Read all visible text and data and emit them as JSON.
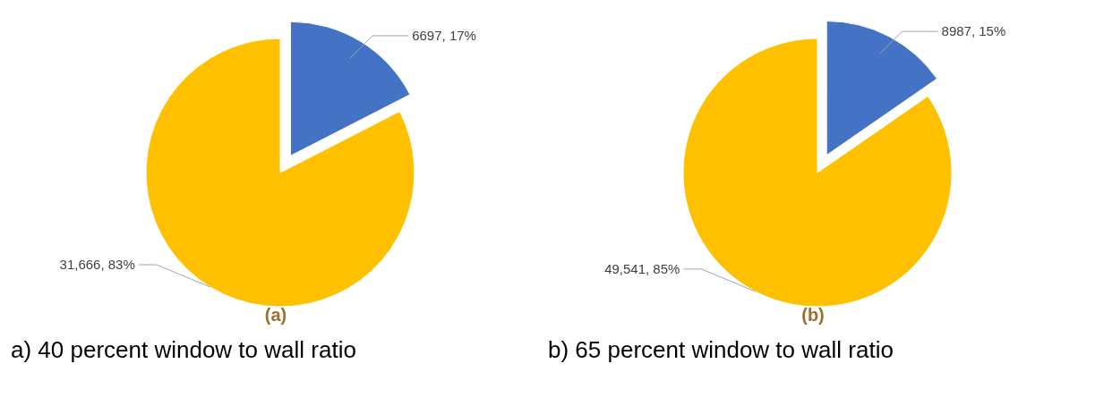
{
  "chart_data": [
    {
      "type": "pie",
      "title": "(a)",
      "categories": [
        null,
        null
      ],
      "values": [
        6697,
        31666
      ],
      "colors": [
        "#4472c4",
        "#ffc000"
      ],
      "value_labels": [
        "6697, 17%",
        "31,666, 83%"
      ],
      "annotations": [
        "a) 40 percent window to wall ratio"
      ]
    },
    {
      "type": "pie",
      "title": "(b)",
      "categories": [
        null,
        null
      ],
      "values": [
        8987,
        49541
      ],
      "colors": [
        "#4472c4",
        "#ffc000"
      ],
      "value_labels": [
        "8987, 15%",
        "49,541, 85%"
      ],
      "annotations": [
        "b) 65 percent window to wall ratio"
      ]
    }
  ]
}
